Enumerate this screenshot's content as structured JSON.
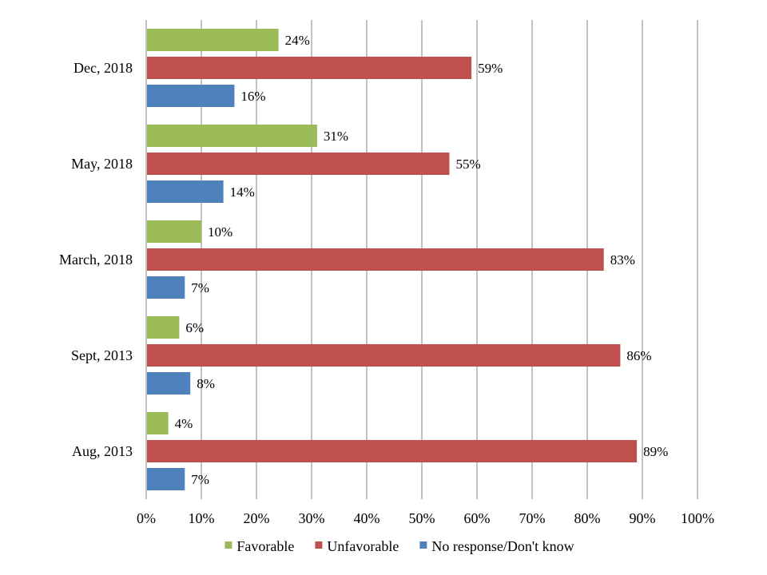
{
  "chart_data": {
    "type": "bar",
    "orientation": "horizontal",
    "categories": [
      "Dec, 2018",
      "May, 2018",
      "March, 2018",
      "Sept, 2013",
      "Aug, 2013"
    ],
    "series": [
      {
        "name": "Favorable",
        "color": "#9bbb59",
        "values": [
          24,
          31,
          10,
          6,
          4
        ]
      },
      {
        "name": "Unfavorable",
        "color": "#c0504d",
        "values": [
          59,
          55,
          83,
          86,
          89
        ]
      },
      {
        "name": "No response/Don't know",
        "color": "#4f81bd",
        "values": [
          16,
          14,
          7,
          8,
          7
        ]
      }
    ],
    "value_suffix": "%",
    "xlim": [
      0,
      100
    ],
    "xticks": [
      0,
      10,
      20,
      30,
      40,
      50,
      60,
      70,
      80,
      90,
      100
    ],
    "xtick_labels": [
      "0%",
      "10%",
      "20%",
      "30%",
      "40%",
      "50%",
      "60%",
      "70%",
      "80%",
      "90%",
      "100%"
    ],
    "title": "",
    "xlabel": "",
    "ylabel": "",
    "grid": "vertical",
    "legend": "bottom-center"
  }
}
